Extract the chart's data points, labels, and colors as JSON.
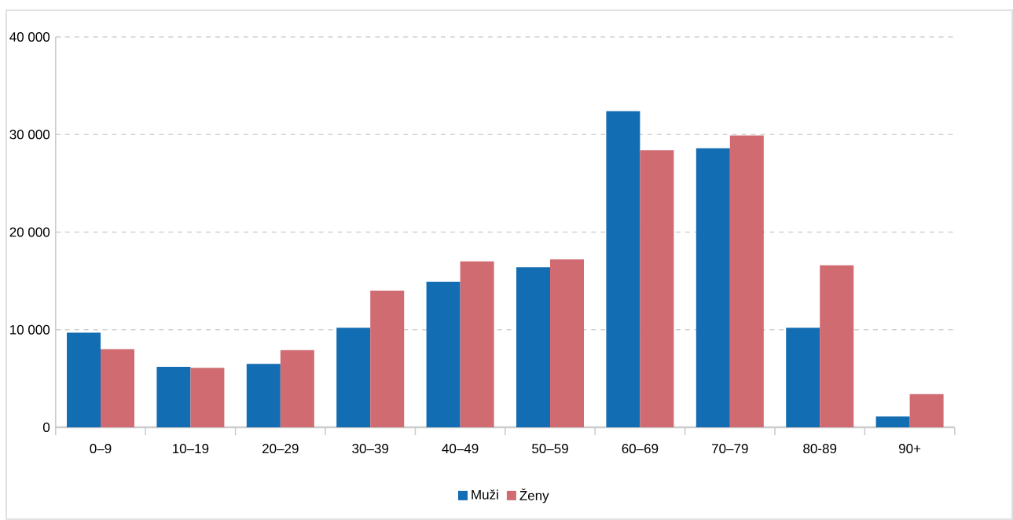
{
  "chart_data": {
    "type": "bar",
    "categories": [
      "0–9",
      "10–19",
      "20–29",
      "30–39",
      "40–49",
      "50–59",
      "60–69",
      "70–79",
      "80-89",
      "90+"
    ],
    "series": [
      {
        "name": "Muži",
        "color": "#136db2",
        "values": [
          9700,
          6200,
          6500,
          10200,
          14900,
          16400,
          32400,
          28600,
          10200,
          1100
        ]
      },
      {
        "name": "Ženy",
        "color": "#d06b72",
        "values": [
          8000,
          6100,
          7900,
          14000,
          17000,
          17200,
          28400,
          29900,
          16600,
          3400
        ]
      }
    ],
    "ylim": [
      0,
      40000
    ],
    "yticks": [
      0,
      {
        "value": 10000,
        "label": "10 000"
      },
      {
        "value": 20000,
        "label": "20 000"
      },
      {
        "value": 30000,
        "label": "30 000"
      },
      {
        "value": 40000,
        "label": "40 000"
      }
    ],
    "grid": "y",
    "legend": "bottom"
  }
}
